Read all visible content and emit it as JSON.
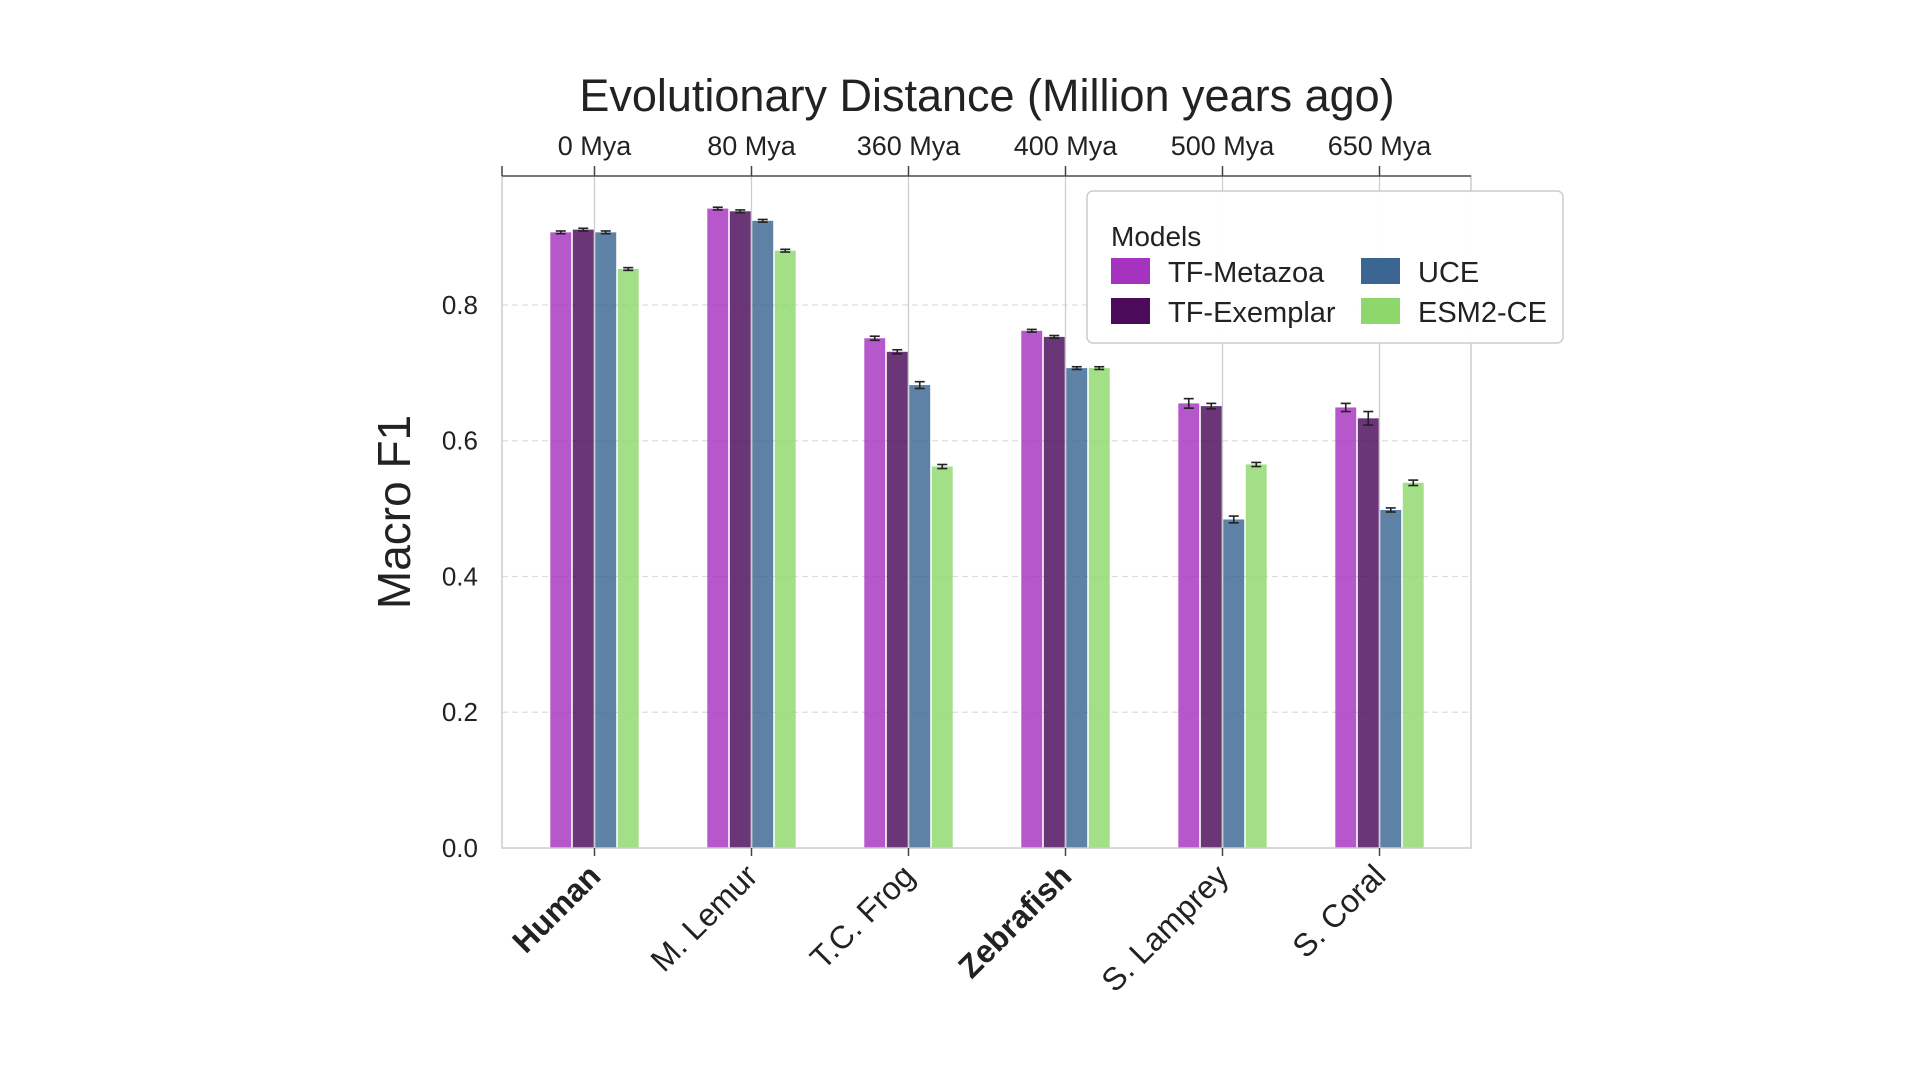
{
  "chart_data": {
    "type": "bar",
    "title": "Evolutionary Distance (Million years ago)",
    "xlabel": "",
    "ylabel": "Macro F1",
    "ylim": [
      0,
      0.99
    ],
    "yticks": [
      "0.0",
      "0.2",
      "0.4",
      "0.6",
      "0.8"
    ],
    "grid": "horizontal dashed + vertical at category ticks",
    "categories": [
      "Human",
      "M. Lemur",
      "T.C. Frog",
      "Zebrafish",
      "S. Lamprey",
      "S. Coral"
    ],
    "bold_categories": [
      "Human",
      "Zebrafish"
    ],
    "top_axis_labels": [
      "0 Mya",
      "80 Mya",
      "360 Mya",
      "400 Mya",
      "500 Mya",
      "650 Mya"
    ],
    "legend": {
      "title": "Models",
      "placement": "top-right"
    },
    "series": [
      {
        "name": "TF-Metazoa",
        "color": "#a632c0",
        "values": [
          0.907,
          0.942,
          0.751,
          0.762,
          0.655,
          0.649
        ],
        "errors": [
          0.002,
          0.002,
          0.003,
          0.002,
          0.007,
          0.006
        ]
      },
      {
        "name": "TF-Exemplar",
        "color": "#4b0a5a",
        "values": [
          0.911,
          0.938,
          0.731,
          0.753,
          0.651,
          0.633
        ],
        "errors": [
          0.002,
          0.002,
          0.003,
          0.002,
          0.004,
          0.01
        ]
      },
      {
        "name": "UCE",
        "color": "#3b6592",
        "values": [
          0.907,
          0.924,
          0.682,
          0.707,
          0.484,
          0.498
        ],
        "errors": [
          0.002,
          0.002,
          0.005,
          0.002,
          0.005,
          0.003
        ]
      },
      {
        "name": "ESM2-CE",
        "color": "#8ed86b",
        "values": [
          0.853,
          0.88,
          0.562,
          0.707,
          0.565,
          0.538
        ],
        "errors": [
          0.002,
          0.002,
          0.003,
          0.002,
          0.003,
          0.004
        ]
      }
    ]
  }
}
